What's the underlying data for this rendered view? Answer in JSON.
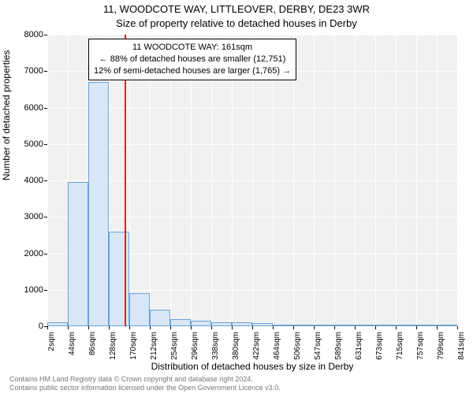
{
  "titles": {
    "line1": "11, WOODCOTE WAY, LITTLEOVER, DERBY, DE23 3WR",
    "line2": "Size of property relative to detached houses in Derby"
  },
  "axes": {
    "ylabel": "Number of detached properties",
    "xlabel": "Distribution of detached houses by size in Derby",
    "ylim": [
      0,
      8000
    ],
    "ytick_step": 1000,
    "label_fontsize": 12,
    "tick_fontsize": 11
  },
  "chart": {
    "type": "histogram",
    "background_color": "#f1f1f1",
    "grid_color": "#ffffff",
    "bar_fill": "#d8e7f5",
    "bar_border": "#6aa2d8",
    "bin_start": 2,
    "bin_width": 42,
    "values": [
      100,
      3950,
      6700,
      2600,
      900,
      450,
      200,
      150,
      110,
      100,
      80,
      40,
      30,
      20,
      15,
      10,
      8,
      5,
      3,
      2
    ],
    "xtick_labels": [
      "2sqm",
      "44sqm",
      "86sqm",
      "128sqm",
      "170sqm",
      "212sqm",
      "254sqm",
      "296sqm",
      "338sqm",
      "380sqm",
      "422sqm",
      "464sqm",
      "506sqm",
      "547sqm",
      "589sqm",
      "631sqm",
      "673sqm",
      "715sqm",
      "757sqm",
      "799sqm",
      "841sqm"
    ]
  },
  "reference": {
    "value": 161,
    "color": "#d62728"
  },
  "annotation": {
    "line1": "11 WOODCOTE WAY: 161sqm",
    "line2": "← 88% of detached houses are smaller (12,751)",
    "line3": "12% of semi-detached houses are larger (1,765) →"
  },
  "footer": {
    "line1": "Contains HM Land Registry data © Crown copyright and database right 2024.",
    "line2": "Contains public sector information licensed under the Open Government Licence v3.0."
  }
}
